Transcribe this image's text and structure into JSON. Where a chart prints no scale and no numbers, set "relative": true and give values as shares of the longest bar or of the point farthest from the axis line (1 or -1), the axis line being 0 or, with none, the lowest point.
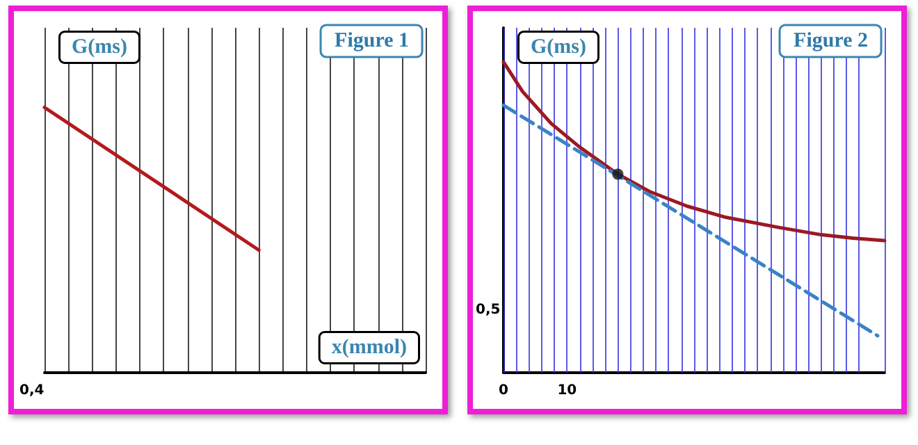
{
  "chart_data": [
    {
      "type": "line",
      "title": "Figure 1",
      "ylabel": "G(ms)",
      "xlabel": "x(mmol)",
      "relative": true,
      "grid": "x",
      "marker": "none",
      "annotations": [
        "0,4"
      ],
      "categories": [
        null,
        null,
        null,
        null,
        null,
        null,
        null,
        null,
        null,
        null,
        null,
        null,
        null,
        null,
        null,
        null,
        null
      ],
      "series": [
        {
          "color": "#b3191f",
          "values": [
            1,
            null,
            null,
            null,
            null,
            null,
            null,
            null,
            null,
            0.462,
            null,
            null,
            null,
            null,
            null,
            null,
            null
          ]
        }
      ]
    },
    {
      "type": "line",
      "title": "Figure 2",
      "ylabel": "G(ms)",
      "grid": "x",
      "relative": true,
      "xlim": [
        0,
        60
      ],
      "xticks": [
        0,
        {
          "value": 2,
          "label": null
        },
        {
          "value": 4,
          "label": null
        },
        {
          "value": 6,
          "label": null
        },
        {
          "value": 8,
          "label": null
        },
        10,
        {
          "value": 12,
          "label": null
        },
        {
          "value": 14,
          "label": null
        },
        {
          "value": 16,
          "label": null
        },
        {
          "value": 18,
          "label": null
        },
        {
          "value": 20,
          "label": null
        },
        {
          "value": 22,
          "label": null
        },
        {
          "value": 24,
          "label": null
        },
        {
          "value": 26,
          "label": null
        },
        {
          "value": 28,
          "label": null
        },
        {
          "value": 30,
          "label": null
        },
        {
          "value": 32,
          "label": null
        },
        {
          "value": 34,
          "label": null
        },
        {
          "value": 36,
          "label": null
        },
        {
          "value": 38,
          "label": null
        },
        {
          "value": 40,
          "label": null
        },
        {
          "value": 42,
          "label": null
        },
        {
          "value": 44,
          "label": null
        },
        {
          "value": 46,
          "label": null
        },
        {
          "value": 48,
          "label": null
        },
        {
          "value": 50,
          "label": null
        },
        {
          "value": 52,
          "label": null
        },
        {
          "value": 54,
          "label": null
        },
        {
          "value": 56,
          "label": null
        },
        {
          "value": 60,
          "label": null
        }
      ],
      "annotations": [
        "0,5"
      ],
      "series": [
        {
          "color": "#9b1a24",
          "marker": "none",
          "line_style": "solid",
          "x": [
            0,
            3,
            7.5,
            12,
            18,
            23,
            28.9,
            35,
            43.2,
            50,
            55,
            60
          ],
          "values": [
            1,
            0.905,
            0.802,
            0.726,
            0.639,
            0.583,
            0.536,
            0.5,
            0.468,
            0.444,
            0.433,
            0.425
          ]
        },
        {
          "color": "#3a82c8",
          "marker": "none",
          "line_style": "dashed",
          "x": [
            0,
            58.9
          ],
          "values": [
            0.861,
            0.119
          ]
        },
        {
          "type": "scatter",
          "color": "#111111",
          "marker": "circle",
          "x": [
            18
          ],
          "values": [
            0.639
          ]
        }
      ]
    }
  ]
}
